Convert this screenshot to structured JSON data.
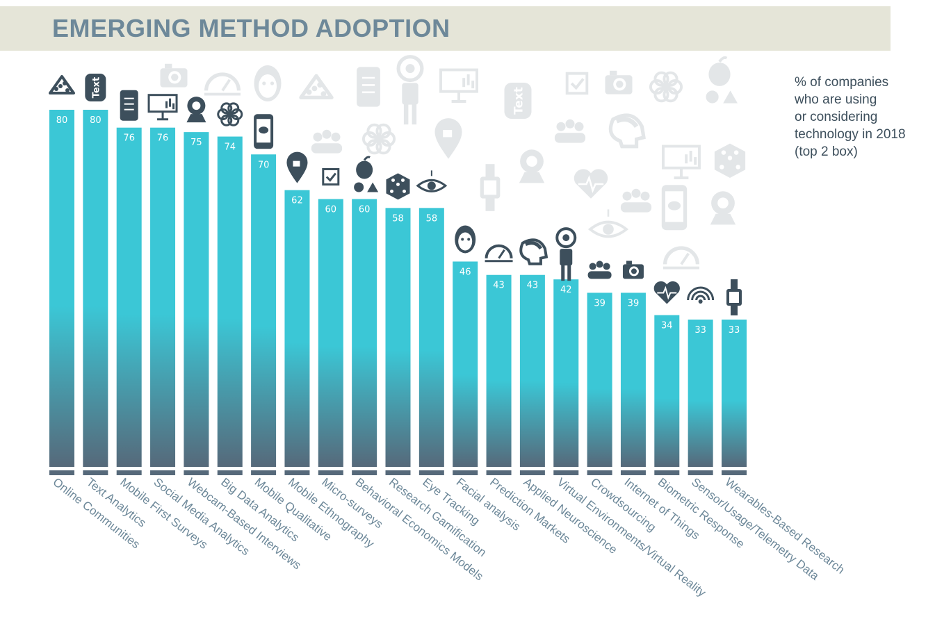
{
  "header": {
    "title": "EMERGING METHOD ADOPTION"
  },
  "note_lines": [
    "% of companies",
    "who are using",
    "or considering",
    "technology in 2018",
    "(top 2 box)"
  ],
  "colors": {
    "bar_top": "#3bc7d6",
    "bar_bottom": "#56697a",
    "base": "#56697a",
    "icon": "#3d4f5c",
    "ghost_icon": "#e3e6e8",
    "label": "#6d8899"
  },
  "chart_data": {
    "type": "bar",
    "title": "EMERGING METHOD ADOPTION",
    "ylabel": "% of companies who are using or considering technology in 2018 (top 2 box)",
    "xlabel": "",
    "ylim": [
      0,
      100
    ],
    "grid": false,
    "categories": [
      "Online Communities",
      "Text Analytics",
      "Mobile First Surveys",
      "Social Media Analytics",
      "Webcam-Based Interviews",
      "Big Data Analytics",
      "Mobile Qualitative",
      "Mobile Ethnography",
      "Micro-surveys",
      "Behavioral Economics Models",
      "Research Gamification",
      "Eye Tracking",
      "Facial analysis",
      "Prediction Markets",
      "Applied Neuroscience",
      "Virtual Environments/Virtual Reality",
      "Crowdsourcing",
      "Internet of Things",
      "Biometric Response",
      "Sensor/Usage/Telemetry Data",
      "Wearables-Based Research"
    ],
    "values": [
      80,
      80,
      76,
      76,
      75,
      74,
      70,
      62,
      60,
      60,
      58,
      58,
      46,
      43,
      43,
      42,
      39,
      39,
      34,
      33,
      33
    ],
    "icons": [
      "network-icon",
      "text-icon",
      "phone-sliders-icon",
      "presentation-icon",
      "webcam-icon",
      "flower-icon",
      "phone-chat-icon",
      "location-pin-icon",
      "checkbox-icon",
      "apple-icon",
      "dice-icon",
      "eye-icon",
      "face-icon",
      "gauge-icon",
      "head-brain-icon",
      "vr-person-icon",
      "people-group-icon",
      "camera-icon",
      "heart-pulse-icon",
      "wifi-icon",
      "smartwatch-icon"
    ]
  }
}
